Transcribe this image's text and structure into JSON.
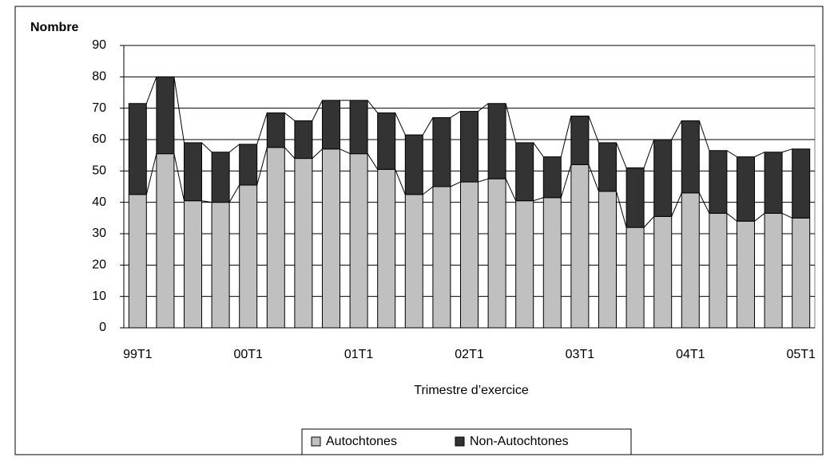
{
  "chart_data": {
    "type": "stacked_bar",
    "y_label": "Nombre",
    "x_label": "Trimestre d’exercice",
    "categories": [
      "99T1",
      null,
      null,
      null,
      "00T1",
      null,
      null,
      null,
      "01T1",
      null,
      null,
      null,
      "02T1",
      null,
      null,
      null,
      "03T1",
      null,
      null,
      null,
      "04T1",
      null,
      null,
      null,
      "05T1"
    ],
    "series": [
      {
        "name": "Autochtones",
        "color": "#c0c0c0",
        "values": [
          42.5,
          55.5,
          40.5,
          40,
          45.5,
          57.5,
          54,
          57,
          55.5,
          50.5,
          42.5,
          45,
          46.5,
          47.5,
          40.5,
          41.5,
          52,
          43.5,
          32,
          35.5,
          43,
          36.5,
          34,
          36.5,
          35
        ]
      },
      {
        "name": "Non-Autochtones",
        "color": "#333333",
        "values": [
          29,
          24.5,
          18.5,
          16,
          13,
          11,
          12,
          15.5,
          17,
          18,
          19,
          22,
          22.5,
          24,
          18.5,
          13,
          15.5,
          15.5,
          19,
          24.5,
          23,
          20,
          20.5,
          19.5,
          22
        ]
      }
    ],
    "ylim": [
      0,
      90
    ],
    "yticks": [
      0,
      10,
      20,
      30,
      40,
      50,
      60,
      70,
      80,
      90
    ],
    "grid": true,
    "legend": "bottom",
    "series_lines": true
  }
}
